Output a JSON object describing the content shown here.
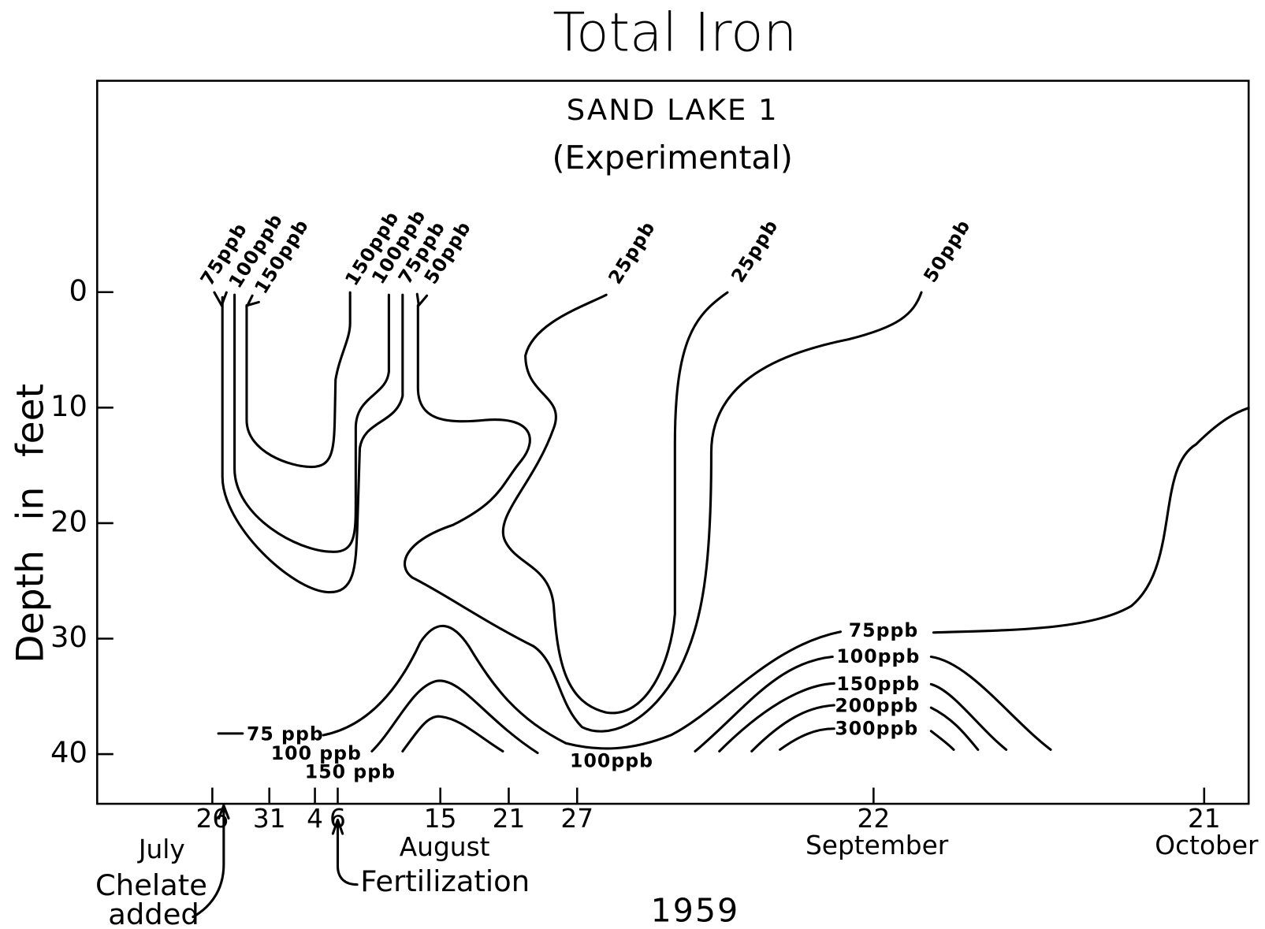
{
  "chart_data": {
    "type": "contour",
    "title": "Total Iron",
    "subtitle": [
      "SAND LAKE 1",
      "(Experimental)"
    ],
    "y_label": "Depth in feet",
    "x_label": "1959",
    "ylim": [
      44.3,
      -18.3
    ],
    "yticks": [
      0,
      10,
      20,
      30,
      40
    ],
    "xlim": [
      196.9,
      297.9
    ],
    "xticks": [
      {
        "value": 207,
        "label": "26"
      },
      {
        "value": 212,
        "label": "31"
      },
      {
        "value": 216,
        "label": "4"
      },
      {
        "value": 218,
        "label": "6"
      },
      {
        "value": 227,
        "label": "15"
      },
      {
        "value": 233,
        "label": "21"
      },
      {
        "value": 239,
        "label": "27"
      },
      {
        "value": 265,
        "label": "22"
      },
      {
        "value": 294,
        "label": "21"
      }
    ],
    "month_labels": [
      "July",
      "August",
      "September",
      "October"
    ],
    "annotations": [
      {
        "text": [
          "Chelate",
          "added"
        ],
        "x": 208
      },
      {
        "text": [
          "Fertilization"
        ],
        "x": 218
      }
    ],
    "contours": [
      {
        "level": 75,
        "labels": [
          "75ppb",
          "75ppb"
        ]
      },
      {
        "level": 100,
        "labels": [
          "100ppb",
          "100ppb"
        ]
      },
      {
        "level": 150,
        "labels": [
          "150ppb",
          "150ppb"
        ]
      },
      {
        "level": 50,
        "labels": [
          "50ppb",
          "50ppb"
        ]
      },
      {
        "level": 25,
        "labels": [
          "25ppb",
          "25ppb"
        ]
      },
      {
        "level": 75,
        "labels": [
          "75 ppb",
          "75ppb"
        ]
      },
      {
        "level": 100,
        "labels": [
          "100 ppb",
          "100ppb",
          "100ppb"
        ]
      },
      {
        "level": 150,
        "labels": [
          "150 ppb",
          "150ppb"
        ]
      },
      {
        "level": 200,
        "labels": [
          "200ppb"
        ]
      },
      {
        "level": 300,
        "labels": [
          "300ppb"
        ]
      }
    ]
  }
}
